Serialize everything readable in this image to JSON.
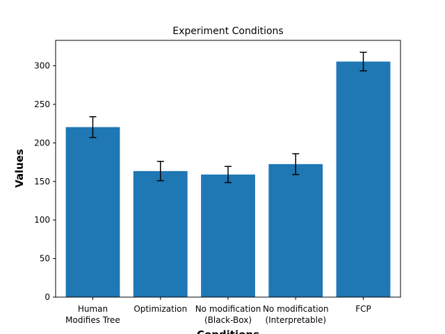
{
  "chart_data": {
    "type": "bar",
    "title": "Experiment Conditions",
    "xlabel": "Conditions",
    "ylabel": "Values",
    "categories": [
      [
        "Human",
        "Modifies Tree"
      ],
      [
        "Optimization"
      ],
      [
        "No modification",
        "(Black-Box)"
      ],
      [
        "No modification",
        "(Interpretable)"
      ],
      [
        "FCP"
      ]
    ],
    "values": [
      220.5,
      163.5,
      159.0,
      172.5,
      305.5
    ],
    "errors": [
      13.5,
      12.5,
      10.5,
      13.5,
      12.0
    ],
    "ylim": [
      0,
      333
    ],
    "yticks": [
      0,
      50,
      100,
      150,
      200,
      250,
      300
    ],
    "bar_color": "#1f77b4",
    "error_color": "#000000",
    "grid": false,
    "legend": false
  }
}
